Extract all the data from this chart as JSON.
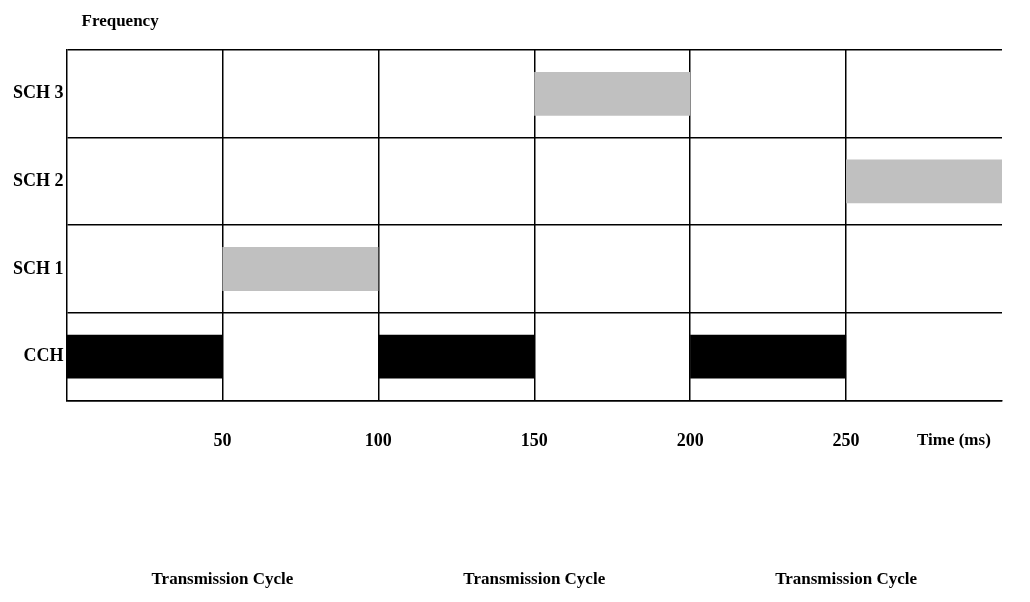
{
  "chart_data": {
    "type": "bar",
    "orientation": "horizontal",
    "xlabel": "Time (ms)",
    "ylabel": "Frequency",
    "categories": [
      "SCH 3",
      "SCH 2",
      "SCH 1",
      "CCH"
    ],
    "series": [
      {
        "color": "#c0c0c0",
        "values": [
          50,
          50,
          50,
          null
        ],
        "base": [
          150,
          250,
          50,
          null
        ]
      },
      {
        "color": "#000000",
        "values": [
          null,
          null,
          null,
          50
        ],
        "base": [
          null,
          null,
          null,
          0
        ]
      },
      {
        "color": "#000000",
        "values": [
          null,
          null,
          null,
          50
        ],
        "base": [
          null,
          null,
          null,
          100
        ]
      },
      {
        "color": "#000000",
        "values": [
          null,
          null,
          null,
          50
        ],
        "base": [
          null,
          null,
          null,
          200
        ]
      }
    ],
    "xlim": [
      0,
      300
    ],
    "xticks": [
      50,
      100,
      150,
      200,
      250
    ],
    "grid": true,
    "legend": false,
    "annotations": [
      "Transmission Cycle",
      "Transmission Cycle",
      "Transmission Cycle"
    ]
  }
}
